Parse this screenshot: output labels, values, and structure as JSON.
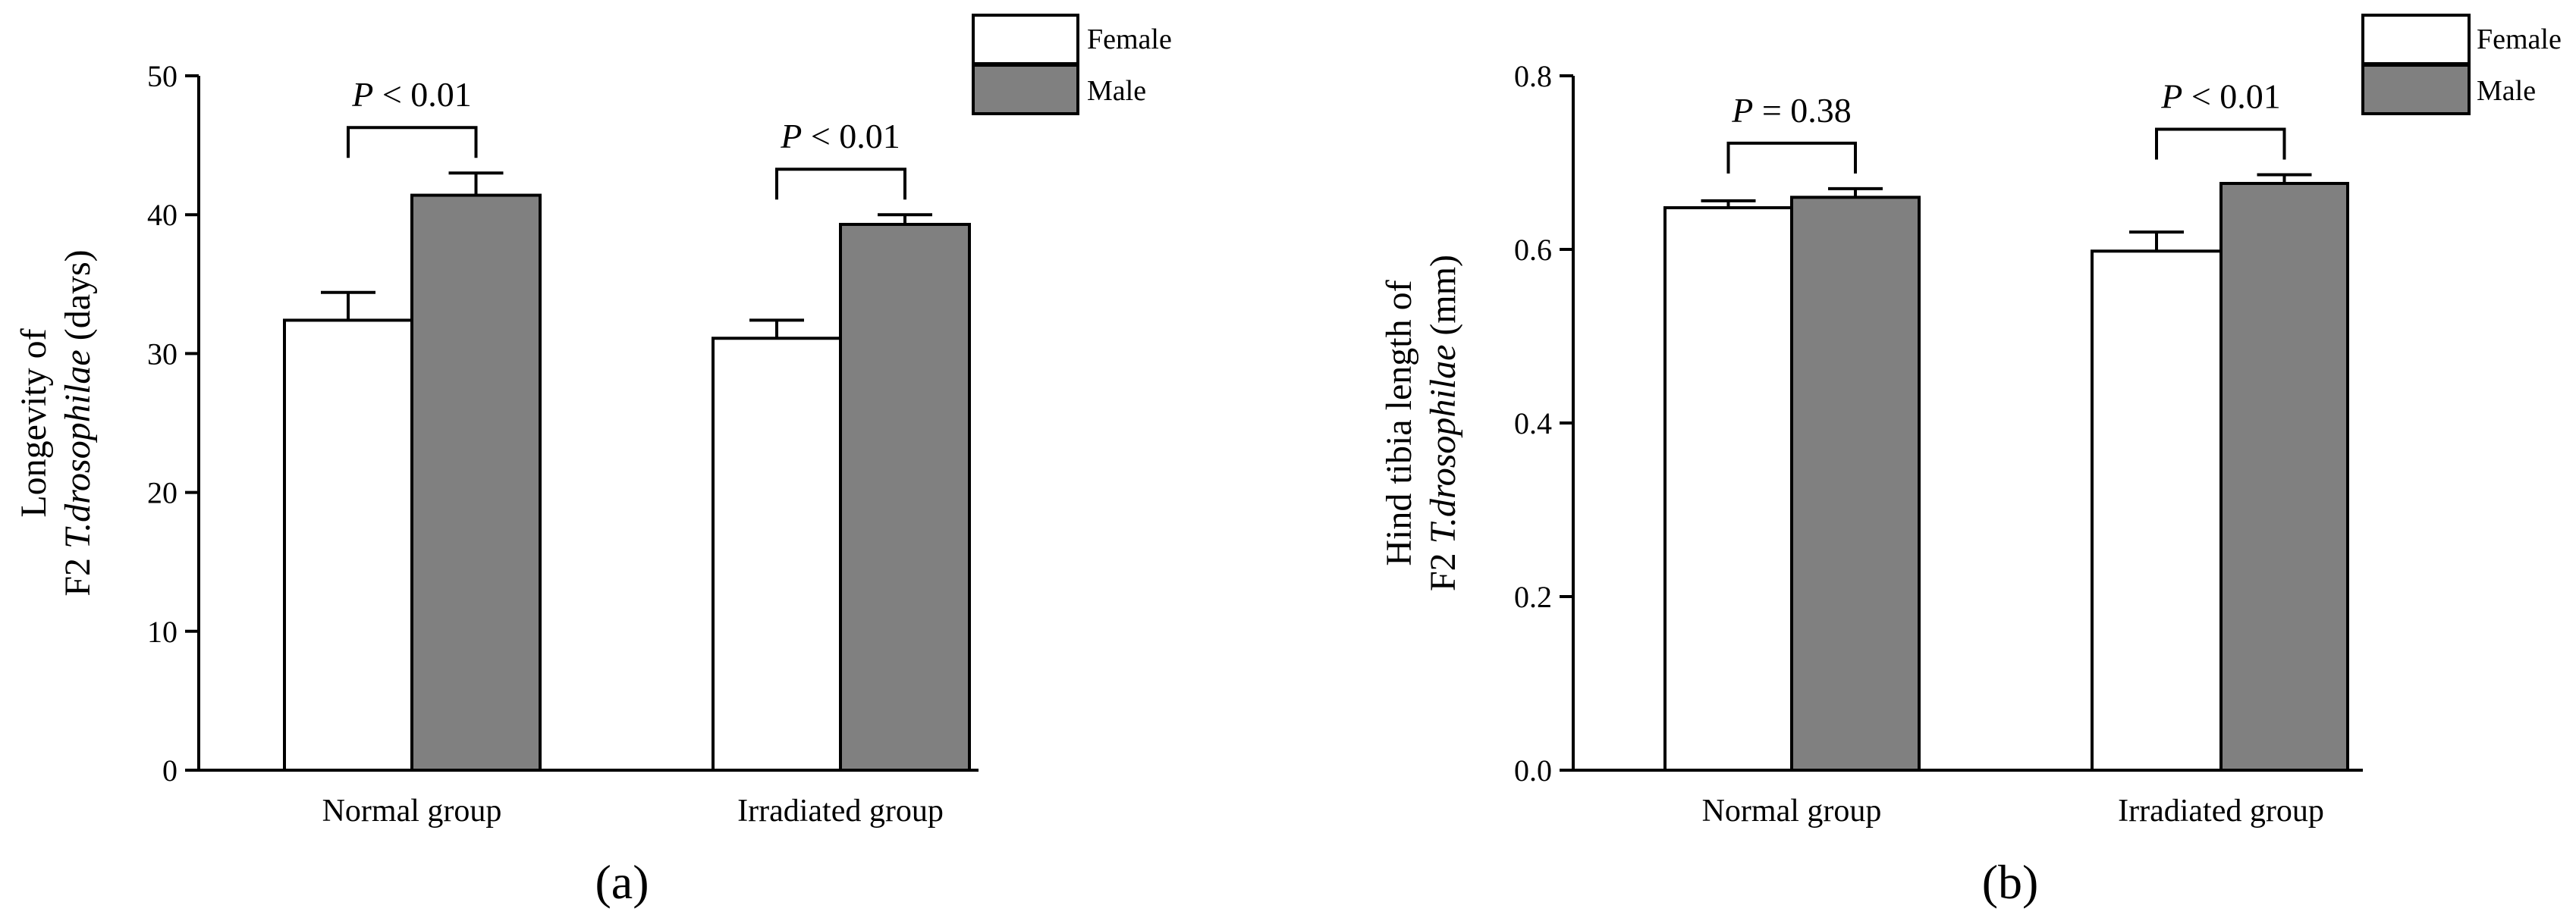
{
  "colors": {
    "female_fill": "#ffffff",
    "male_fill": "#808080",
    "stroke": "#000000"
  },
  "chart_data": [
    {
      "type": "bar",
      "panel_label": "(a)",
      "categories": [
        "Normal group",
        "Irradiated group"
      ],
      "series": [
        {
          "name": "Female",
          "values": [
            32.4,
            31.1
          ],
          "errors": [
            2.0,
            1.3
          ]
        },
        {
          "name": "Male",
          "values": [
            41.4,
            39.3
          ],
          "errors": [
            1.6,
            0.7
          ]
        }
      ],
      "ylabel_line1": "Longevity of",
      "ylabel_line2_prefix": "F2 ",
      "ylabel_line2_species": "T.drosophilae",
      "ylabel_line2_suffix": " (days)",
      "ylim": [
        0,
        50
      ],
      "yticks": [
        "0",
        "10",
        "20",
        "30",
        "40",
        "50"
      ],
      "legend": [
        "Female",
        "Male"
      ],
      "legend_position": "top-right",
      "significance": [
        {
          "category": "Normal group",
          "p_italic": "P",
          "p_rest": " < 0.01"
        },
        {
          "category": "Irradiated group",
          "p_italic": "P",
          "p_rest": " < 0.01"
        }
      ]
    },
    {
      "type": "bar",
      "panel_label": "(b)",
      "categories": [
        "Normal group",
        "Irradiated group"
      ],
      "series": [
        {
          "name": "Female",
          "values": [
            0.648,
            0.598
          ],
          "errors": [
            0.008,
            0.022
          ]
        },
        {
          "name": "Male",
          "values": [
            0.66,
            0.676
          ],
          "errors": [
            0.01,
            0.01
          ]
        }
      ],
      "ylabel_line1": "Hind tibia length of",
      "ylabel_line2_prefix": "F2 ",
      "ylabel_line2_species": "T.drosophilae",
      "ylabel_line2_suffix": " (mm)",
      "ylim": [
        0,
        0.8
      ],
      "yticks": [
        "0.0",
        "0.2",
        "0.4",
        "0.6",
        "0.8"
      ],
      "legend": [
        "Female",
        "Male"
      ],
      "legend_position": "top-right",
      "significance": [
        {
          "category": "Normal group",
          "p_italic": "P",
          "p_rest": " = 0.38"
        },
        {
          "category": "Irradiated group",
          "p_italic": "P",
          "p_rest": " < 0.01"
        }
      ]
    }
  ]
}
